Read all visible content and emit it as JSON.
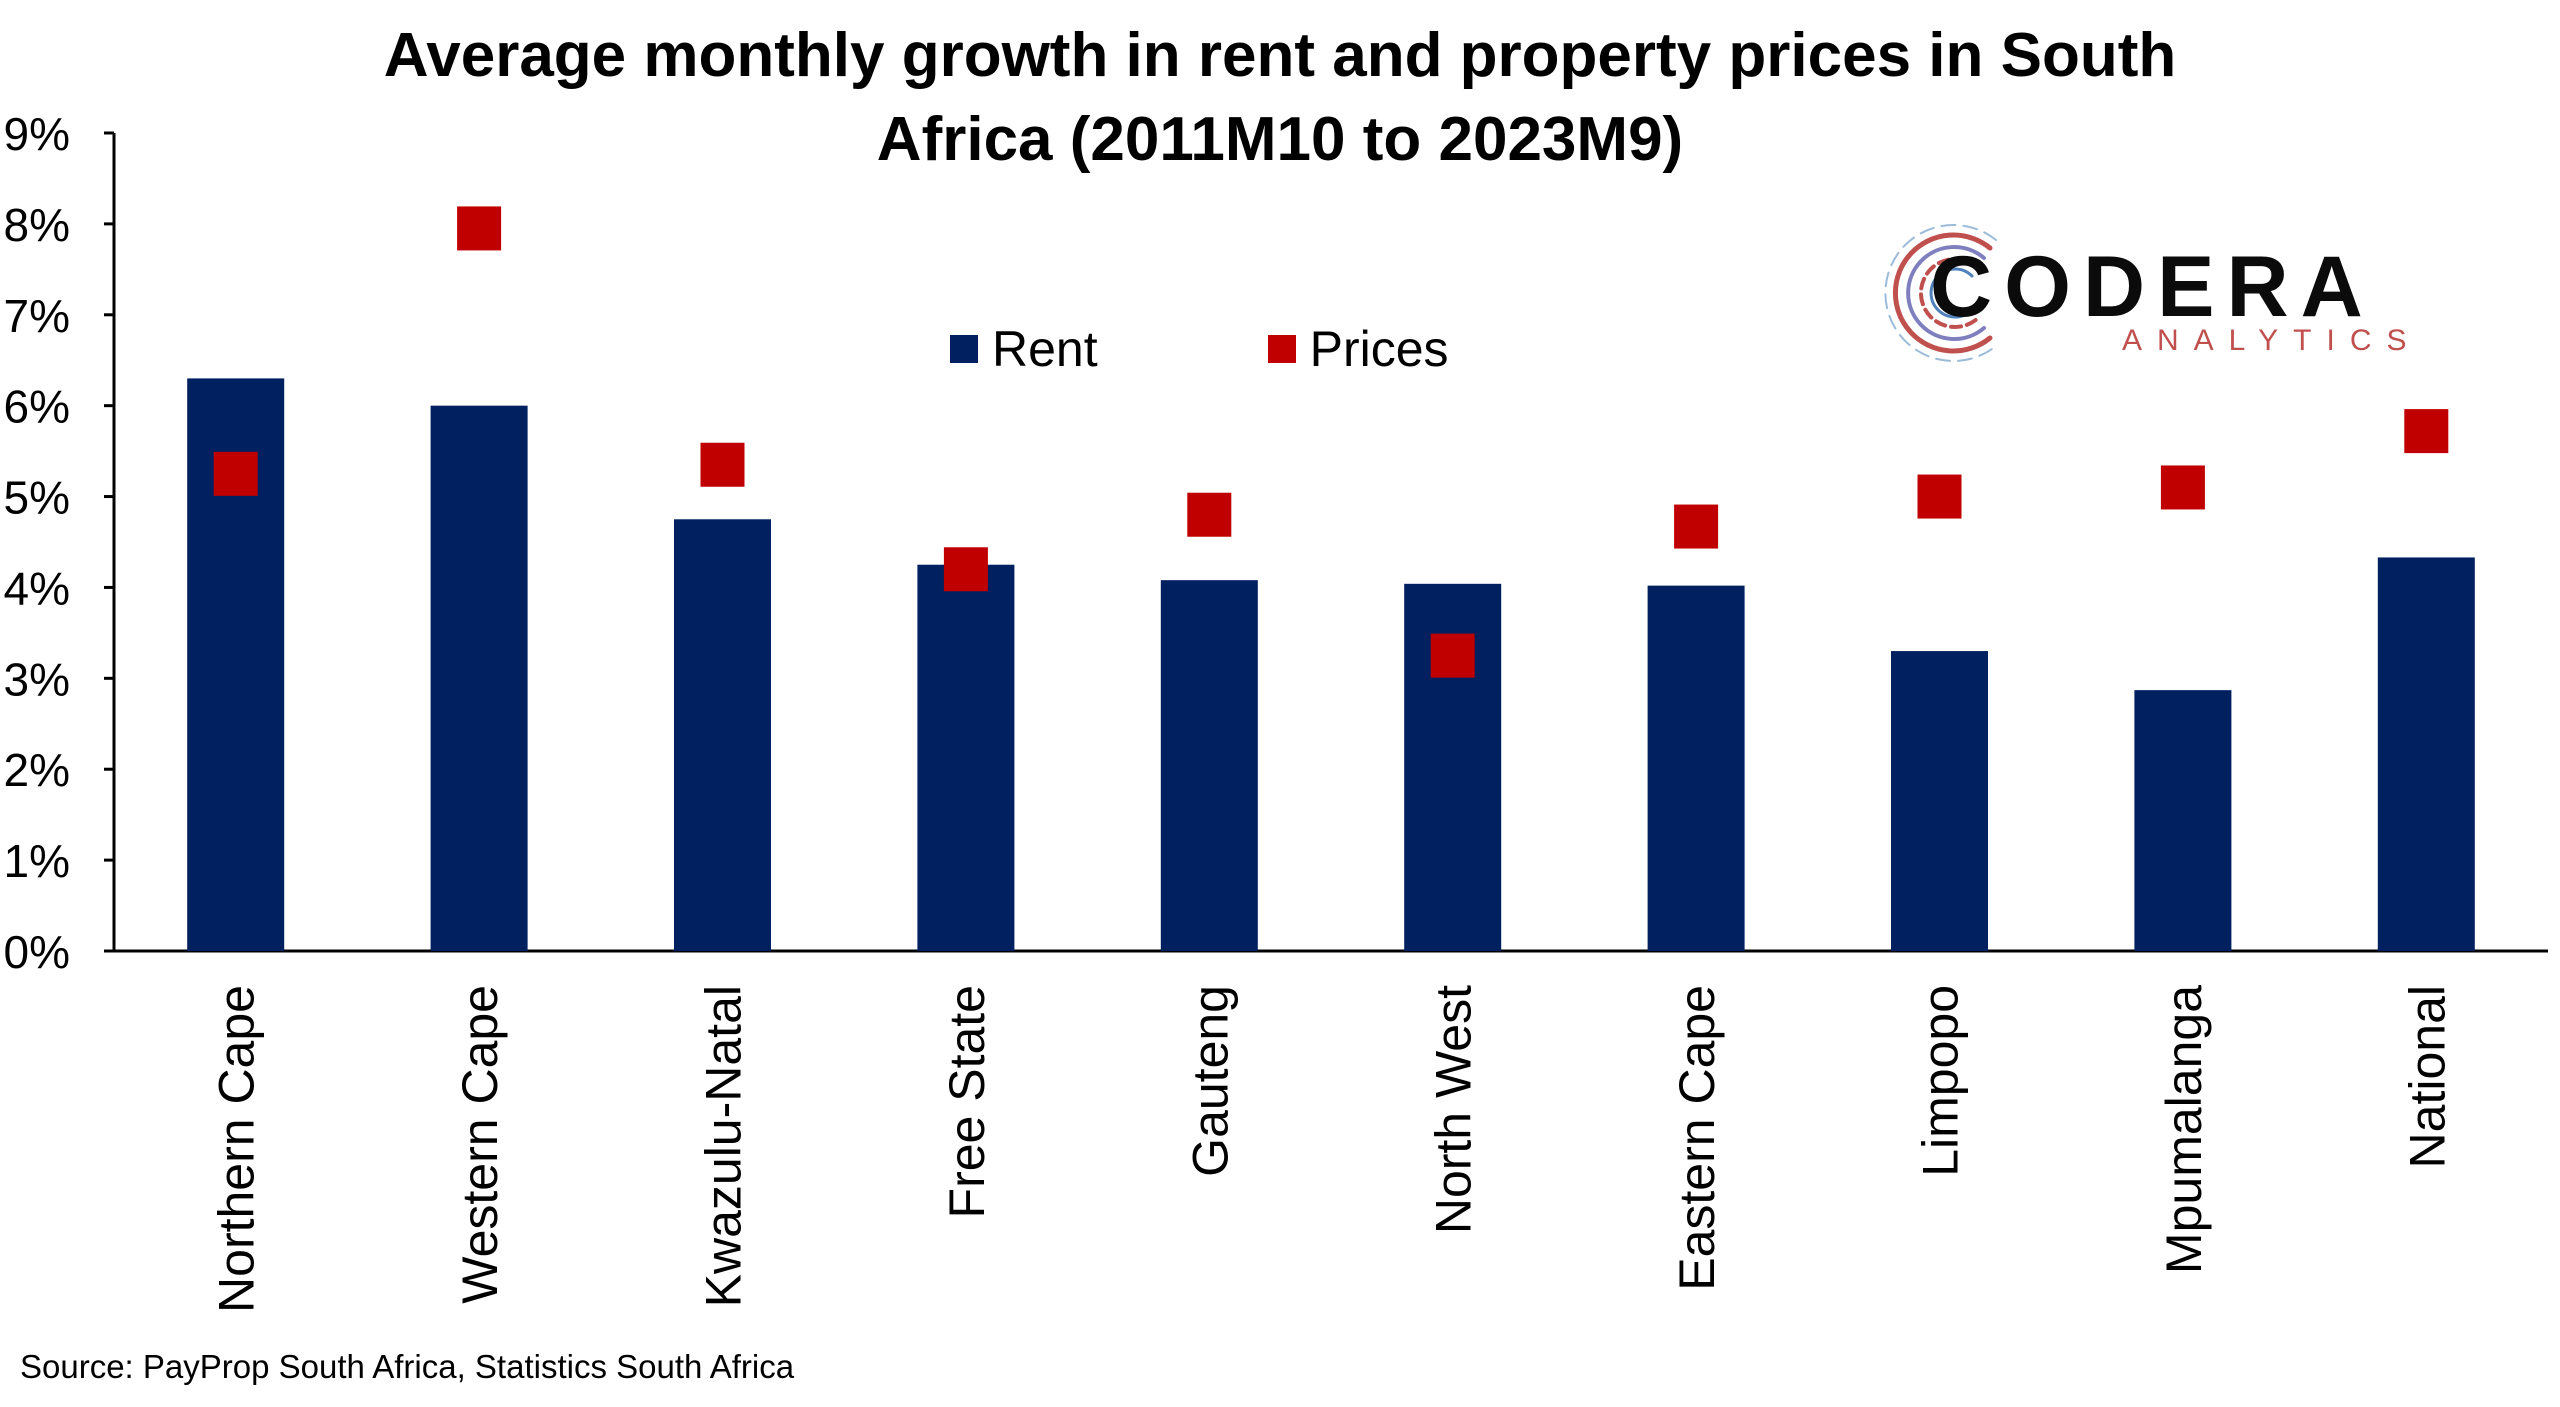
{
  "chart_data": {
    "type": "bar",
    "title_line1": "Average monthly growth in rent and property prices in South",
    "title_line2": "Africa (2011M10 to 2023M9)",
    "categories": [
      "Northern Cape",
      "Western Cape",
      "Kwazulu-Natal",
      "Free State",
      "Gauteng",
      "North West",
      "Eastern Cape",
      "Limpopo",
      "Mpumalanga",
      "National"
    ],
    "series": [
      {
        "name": "Rent",
        "kind": "bar",
        "color": "#002060",
        "values": [
          6.3,
          6.0,
          4.75,
          4.25,
          4.08,
          4.04,
          4.02,
          3.3,
          2.87,
          4.33
        ]
      },
      {
        "name": "Prices",
        "kind": "marker",
        "marker": "square",
        "color": "#c00000",
        "values": [
          5.25,
          7.95,
          5.35,
          4.2,
          4.8,
          3.25,
          4.67,
          5.0,
          5.1,
          5.72
        ]
      }
    ],
    "ylim": [
      0,
      9
    ],
    "yticks": [
      "0%",
      "1%",
      "2%",
      "3%",
      "4%",
      "5%",
      "6%",
      "7%",
      "8%",
      "9%"
    ],
    "grid": false,
    "legend_position": "top-center"
  },
  "logo": {
    "name": "CODERA",
    "sub": "ANALYTICS",
    "icon": "codera-swirl-icon"
  },
  "source": "Source: PayProp South Africa, Statistics South Africa"
}
